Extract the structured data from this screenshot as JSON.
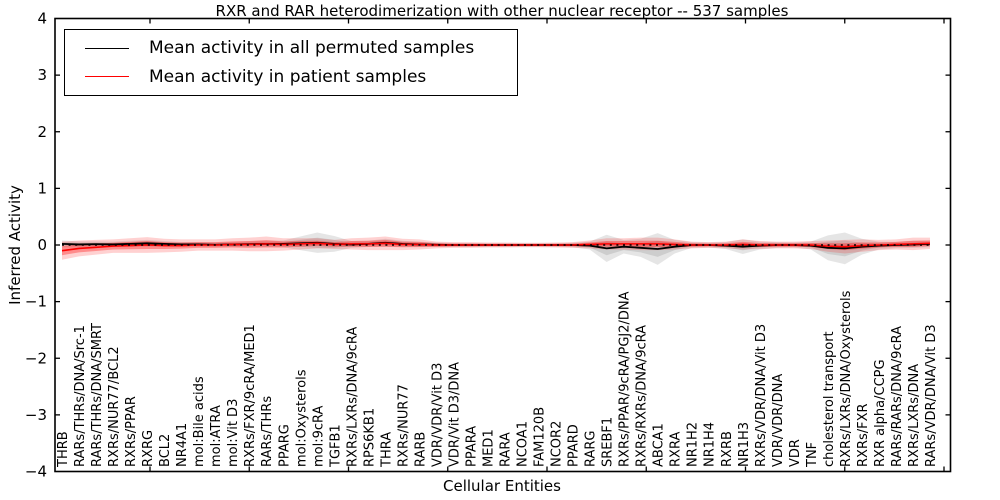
{
  "chart_data": {
    "type": "line",
    "title": "RXR and RAR heterodimerization with other nuclear receptor -- 537 samples",
    "xlabel": "Cellular Entities",
    "ylabel": "Inferred Activity",
    "ylim": [
      -4,
      4
    ],
    "yticks": [
      4,
      3,
      2,
      1,
      0,
      -1,
      -2,
      -3,
      -4
    ],
    "grid": false,
    "legend_position": "upper left",
    "zero_reference_line": true,
    "categories": [
      "THRB",
      "RARs/THRs/DNA/Src-1",
      "RARs/THRs/DNA/SMRT",
      "RXRs/NUR77/BCL2",
      "RXRs/PPAR",
      "RXRG",
      "BCL2",
      "NR4A1",
      "mol:Bile acids",
      "mol:ATRA",
      "mol:Vit D3",
      "RXRs/FXR/9cRA/MED1",
      "RARs/THRs",
      "PPARG",
      "mol:Oxysterols",
      "mol:9cRA",
      "TGFB1",
      "RXRs/LXRs/DNA/9cRA",
      "RPS6KB1",
      "THRA",
      "RXRs/NUR77",
      "RARB",
      "VDR/VDR/Vit D3",
      "VDR/Vit D3/DNA",
      "PPARA",
      "MED1",
      "RARA",
      "NCOA1",
      "FAM120B",
      "NCOR2",
      "PPARD",
      "RARG",
      "SREBF1",
      "RXRs/PPAR/9cRA/PGJ2/DNA",
      "RXRs/RXRs/DNA/9cRA",
      "ABCA1",
      "RXRA",
      "NR1H2",
      "NR1H4",
      "RXRB",
      "NR1H3",
      "RXRs/VDR/DNA/Vit D3",
      "VDR/VDR/DNA",
      "VDR",
      "TNF",
      "cholesterol transport",
      "RXRs/LXRs/DNA/Oxysterols",
      "RXRs/FXR",
      "RXR alpha/CCPG",
      "RARs/RARs/DNA/9cRA",
      "RXRs/LXRs/DNA",
      "RARs/VDR/DNA/Vit D3"
    ],
    "series": [
      {
        "name": "Mean activity in all permuted samples",
        "color": "#000000",
        "band_color": "#000000",
        "mean": [
          0.02,
          0.01,
          0.015,
          0.01,
          0.02,
          0.03,
          0.02,
          0.01,
          0.01,
          0.005,
          0.01,
          0.015,
          0.02,
          0.02,
          0.03,
          0.04,
          0.02,
          0.01,
          0.02,
          0.04,
          0.02,
          0.01,
          0.005,
          0,
          0,
          0,
          0,
          0,
          0,
          0,
          0,
          -0.01,
          -0.06,
          -0.03,
          -0.05,
          -0.07,
          -0.03,
          0,
          0,
          -0.01,
          -0.03,
          -0.01,
          0,
          0,
          -0.01,
          -0.05,
          -0.06,
          -0.03,
          -0.01,
          0,
          0.01,
          0.02
        ],
        "std": [
          0.03,
          0.028,
          0.025,
          0.025,
          0.028,
          0.03,
          0.025,
          0.022,
          0.022,
          0.02,
          0.022,
          0.025,
          0.028,
          0.03,
          0.06,
          0.09,
          0.07,
          0.03,
          0.028,
          0.035,
          0.028,
          0.025,
          0.02,
          0.018,
          0.018,
          0.016,
          0.016,
          0.015,
          0.015,
          0.016,
          0.02,
          0.035,
          0.12,
          0.06,
          0.08,
          0.14,
          0.06,
          0.025,
          0.022,
          0.03,
          0.065,
          0.035,
          0.025,
          0.022,
          0.035,
          0.11,
          0.14,
          0.07,
          0.035,
          0.028,
          0.032,
          0.03
        ]
      },
      {
        "name": "Mean activity in patient samples",
        "color": "#ff0000",
        "band_color": "#ff0000",
        "mean": [
          -0.1,
          -0.06,
          -0.04,
          -0.02,
          -0.01,
          0,
          -0.01,
          -0.01,
          0,
          0,
          0.01,
          0.01,
          0.02,
          0.01,
          0.02,
          0.03,
          0.01,
          0.02,
          0.02,
          0.03,
          0.01,
          0.01,
          0,
          0,
          0,
          0,
          0,
          0,
          0,
          0,
          0,
          0.01,
          0.02,
          0.02,
          0.02,
          0.02,
          0.01,
          0,
          0,
          0,
          0.01,
          0,
          0,
          0,
          0,
          -0.02,
          -0.03,
          -0.01,
          0,
          0.01,
          0.02,
          0.03
        ],
        "std": [
          0.08,
          0.07,
          0.065,
          0.06,
          0.065,
          0.07,
          0.06,
          0.055,
          0.05,
          0.05,
          0.055,
          0.06,
          0.065,
          0.055,
          0.05,
          0.045,
          0.04,
          0.05,
          0.055,
          0.06,
          0.05,
          0.045,
          0.03,
          0.025,
          0.025,
          0.022,
          0.022,
          0.02,
          0.02,
          0.022,
          0.025,
          0.035,
          0.05,
          0.05,
          0.055,
          0.055,
          0.045,
          0.03,
          0.025,
          0.03,
          0.045,
          0.035,
          0.03,
          0.03,
          0.035,
          0.05,
          0.06,
          0.055,
          0.045,
          0.045,
          0.055,
          0.05
        ]
      }
    ]
  }
}
